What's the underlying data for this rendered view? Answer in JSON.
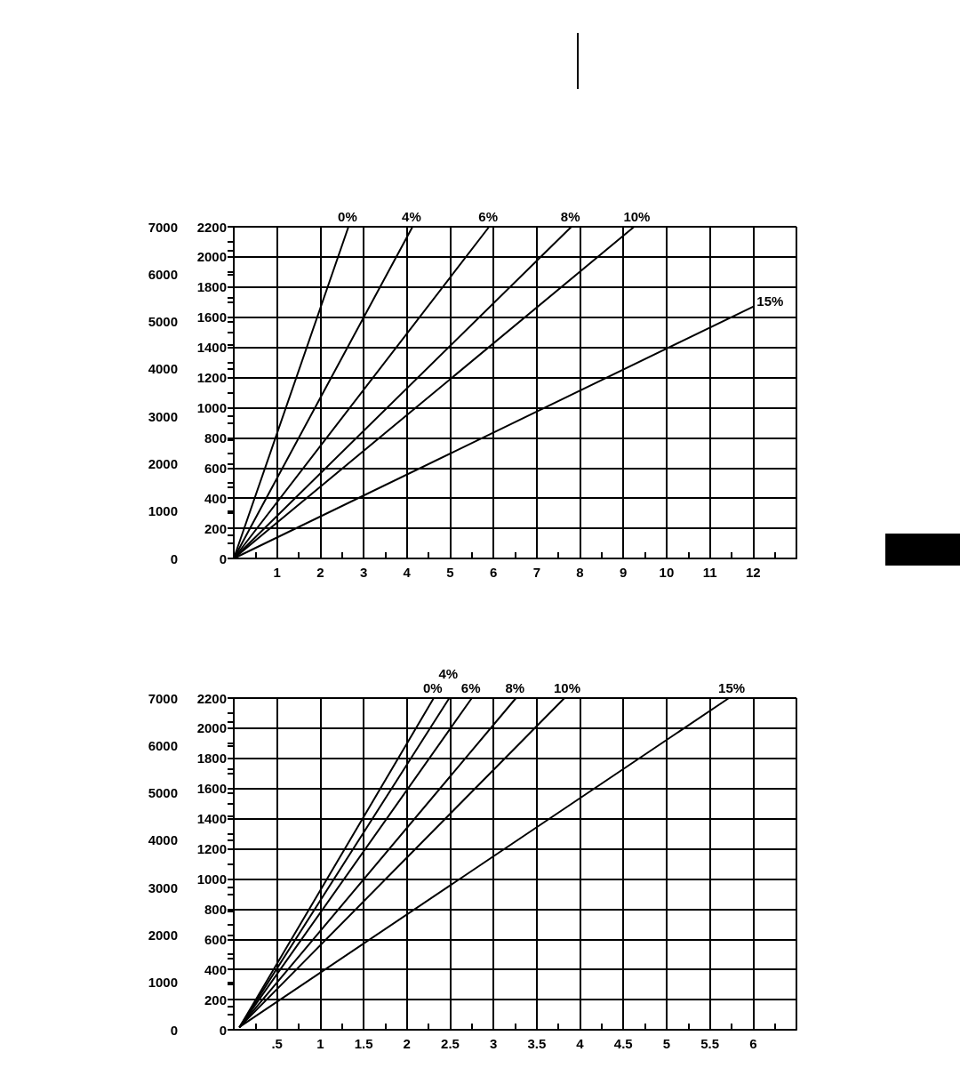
{
  "chart_data": [
    {
      "type": "line",
      "marker": "none",
      "grid": true,
      "legend": false,
      "xlim": [
        0,
        13
      ],
      "xticks": [
        {
          "value": 0.5,
          "label": null
        },
        1,
        {
          "value": 1.5,
          "label": null
        },
        2,
        {
          "value": 2.5,
          "label": null
        },
        3,
        {
          "value": 3.5,
          "label": null
        },
        4,
        {
          "value": 4.5,
          "label": null
        },
        5,
        {
          "value": 5.5,
          "label": null
        },
        6,
        {
          "value": 6.5,
          "label": null
        },
        7,
        {
          "value": 7.5,
          "label": null
        },
        8,
        {
          "value": 8.5,
          "label": null
        },
        9,
        {
          "value": 9.5,
          "label": null
        },
        10,
        {
          "value": 10.5,
          "label": null
        },
        11,
        {
          "value": 11.5,
          "label": null
        },
        12,
        {
          "value": 12.5,
          "label": null
        }
      ],
      "ylim": [
        0,
        2200
      ],
      "yticks": [
        0,
        {
          "value": 100,
          "label": null
        },
        200,
        {
          "value": 300,
          "label": null
        },
        400,
        {
          "value": 500,
          "label": null
        },
        600,
        {
          "value": 700,
          "label": null
        },
        800,
        {
          "value": 900,
          "label": null
        },
        1000,
        {
          "value": 1100,
          "label": null
        },
        1200,
        {
          "value": 1300,
          "label": null
        },
        1400,
        {
          "value": 1500,
          "label": null
        },
        1600,
        {
          "value": 1700,
          "label": null
        },
        1800,
        {
          "value": 1900,
          "label": null
        },
        2000,
        {
          "value": 2100,
          "label": null
        },
        2200
      ],
      "y2lim": [
        0,
        7000
      ],
      "y2ticks": [
        0,
        {
          "value": 500,
          "label": null
        },
        1000,
        {
          "value": 1500,
          "label": null
        },
        2000,
        {
          "value": 2500,
          "label": null
        },
        3000,
        {
          "value": 3500,
          "label": null
        },
        4000,
        {
          "value": 4500,
          "label": null
        },
        5000,
        {
          "value": 5500,
          "label": null
        },
        6000,
        {
          "value": 6500,
          "label": null
        },
        7000
      ],
      "series": [
        {
          "name": "0%",
          "color": "#000000",
          "x": [
            0,
            2.65
          ],
          "values": [
            0,
            2200
          ]
        },
        {
          "name": "4%",
          "color": "#000000",
          "x": [
            0,
            4.13
          ],
          "values": [
            0,
            2200
          ]
        },
        {
          "name": "6%",
          "color": "#000000",
          "x": [
            0,
            5.9
          ],
          "values": [
            0,
            2200
          ]
        },
        {
          "name": "8%",
          "color": "#000000",
          "x": [
            0,
            7.8
          ],
          "values": [
            0,
            2200
          ]
        },
        {
          "name": "10%",
          "color": "#000000",
          "x": [
            0,
            9.25
          ],
          "values": [
            0,
            2200
          ]
        },
        {
          "name": "15%",
          "color": "#000000",
          "x": [
            0,
            12
          ],
          "values": [
            0,
            1670
          ]
        }
      ]
    },
    {
      "type": "line",
      "marker": "none",
      "grid": true,
      "legend": false,
      "xlim": [
        0,
        6.5
      ],
      "xticks": [
        {
          "value": 0.25,
          "label": null
        },
        {
          "value": 0.5,
          "label": ".5"
        },
        {
          "value": 0.75,
          "label": null
        },
        1,
        {
          "value": 1.25,
          "label": null
        },
        1.5,
        {
          "value": 1.75,
          "label": null
        },
        2,
        {
          "value": 2.25,
          "label": null
        },
        2.5,
        {
          "value": 2.75,
          "label": null
        },
        3,
        {
          "value": 3.25,
          "label": null
        },
        3.5,
        {
          "value": 3.75,
          "label": null
        },
        4,
        {
          "value": 4.25,
          "label": null
        },
        4.5,
        {
          "value": 4.75,
          "label": null
        },
        5,
        {
          "value": 5.25,
          "label": null
        },
        5.5,
        {
          "value": 5.75,
          "label": null
        },
        6,
        {
          "value": 6.25,
          "label": null
        }
      ],
      "ylim": [
        0,
        2200
      ],
      "yticks": [
        0,
        {
          "value": 100,
          "label": null
        },
        200,
        {
          "value": 300,
          "label": null
        },
        400,
        {
          "value": 500,
          "label": null
        },
        600,
        {
          "value": 700,
          "label": null
        },
        800,
        {
          "value": 900,
          "label": null
        },
        1000,
        {
          "value": 1100,
          "label": null
        },
        1200,
        {
          "value": 1300,
          "label": null
        },
        1400,
        {
          "value": 1500,
          "label": null
        },
        1600,
        {
          "value": 1700,
          "label": null
        },
        1800,
        {
          "value": 1900,
          "label": null
        },
        2000,
        {
          "value": 2100,
          "label": null
        },
        2200
      ],
      "y2lim": [
        0,
        7000
      ],
      "y2ticks": [
        0,
        {
          "value": 500,
          "label": null
        },
        1000,
        {
          "value": 1500,
          "label": null
        },
        2000,
        {
          "value": 2500,
          "label": null
        },
        3000,
        {
          "value": 3500,
          "label": null
        },
        4000,
        {
          "value": 4500,
          "label": null
        },
        5000,
        {
          "value": 5500,
          "label": null
        },
        6000,
        {
          "value": 6500,
          "label": null
        },
        7000
      ],
      "series": [
        {
          "name": "0%",
          "color": "#000000",
          "x": [
            0.07,
            2.31
          ],
          "values": [
            20,
            2200
          ]
        },
        {
          "name": "4%",
          "color": "#000000",
          "x": [
            0.07,
            2.49
          ],
          "values": [
            20,
            2200
          ]
        },
        {
          "name": "6%",
          "color": "#000000",
          "x": [
            0.07,
            2.75
          ],
          "values": [
            20,
            2200
          ]
        },
        {
          "name": "8%",
          "color": "#000000",
          "x": [
            0.07,
            3.26
          ],
          "values": [
            20,
            2200
          ]
        },
        {
          "name": "10%",
          "color": "#000000",
          "x": [
            0.07,
            3.82
          ],
          "values": [
            20,
            2200
          ]
        },
        {
          "name": "15%",
          "color": "#000000",
          "x": [
            0.07,
            5.72
          ],
          "values": [
            20,
            2200
          ]
        }
      ]
    }
  ]
}
